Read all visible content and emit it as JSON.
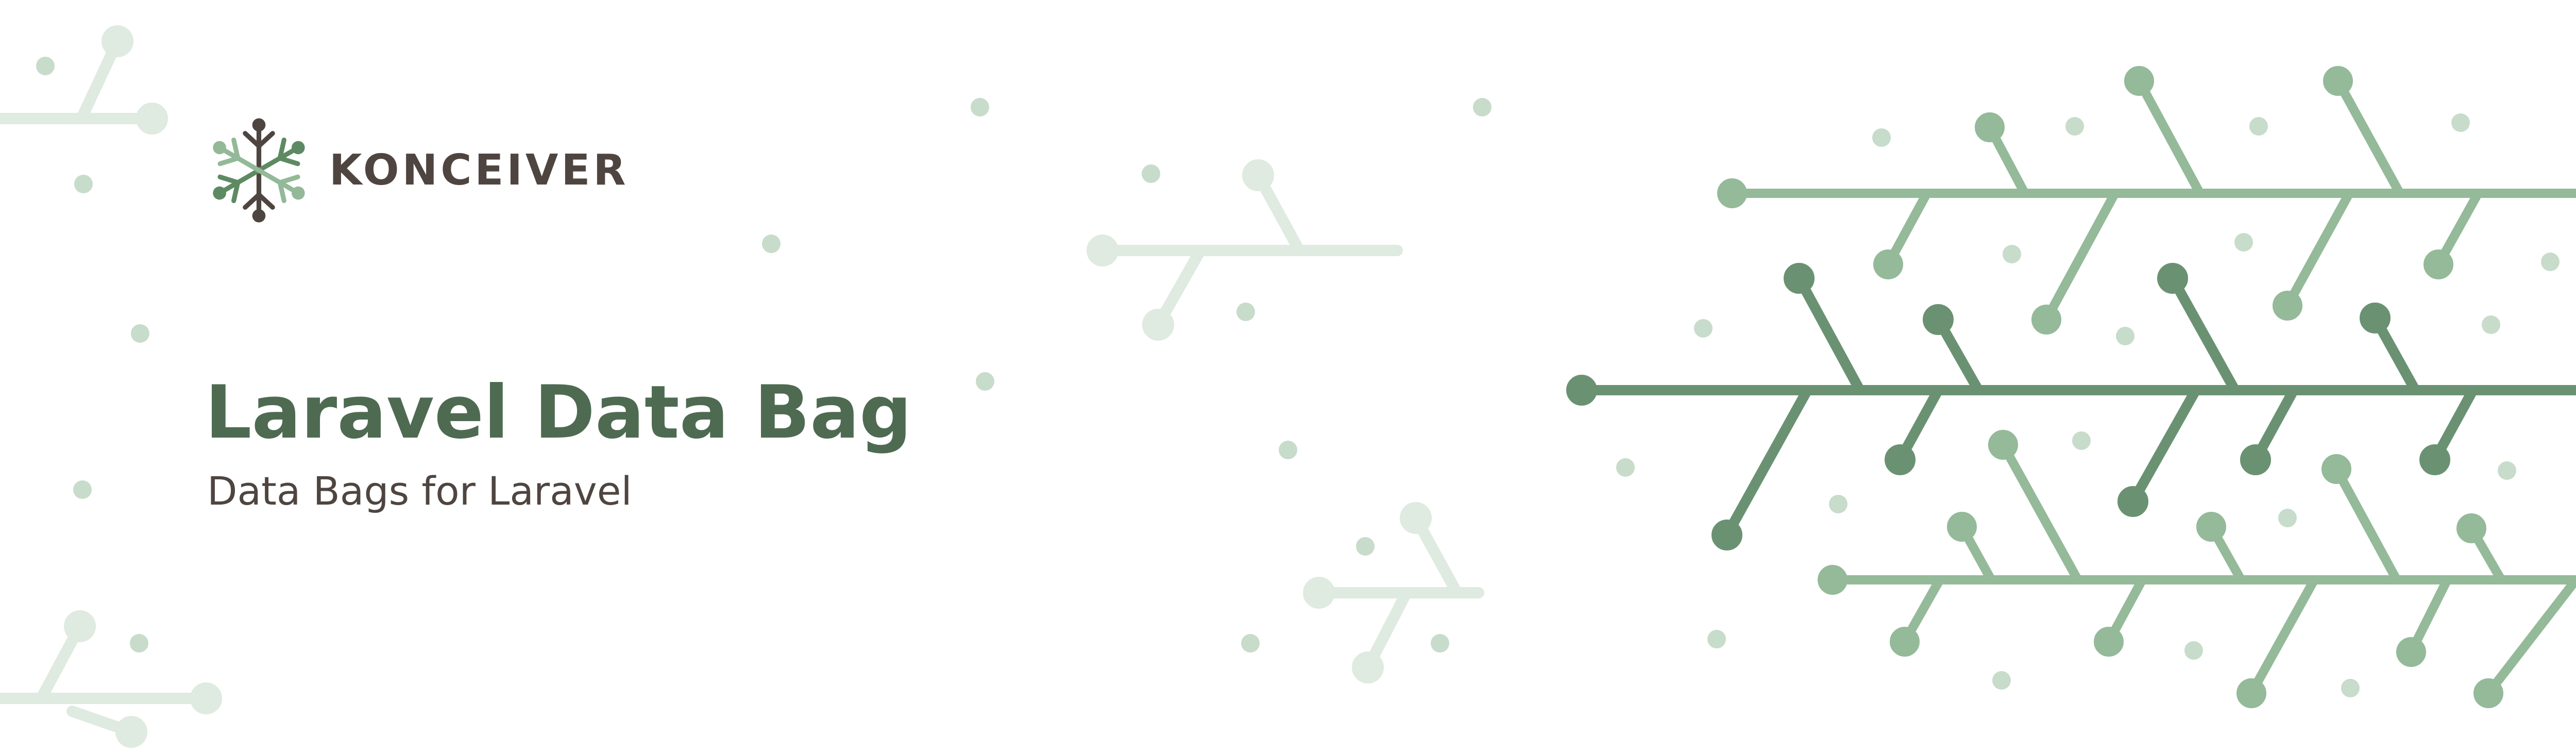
{
  "brand": {
    "name": "KONCEIVER"
  },
  "hero": {
    "title": "Laravel Data Bag",
    "subtitle": "Data Bags for Laravel"
  },
  "colors": {
    "background": "#ffffff",
    "title": "#4e6b52",
    "text": "#4f4540",
    "green_dark": "#6a9272",
    "green_mid": "#93b998",
    "green_light": "#bcd6c0",
    "green_faint": "#dce9de"
  }
}
